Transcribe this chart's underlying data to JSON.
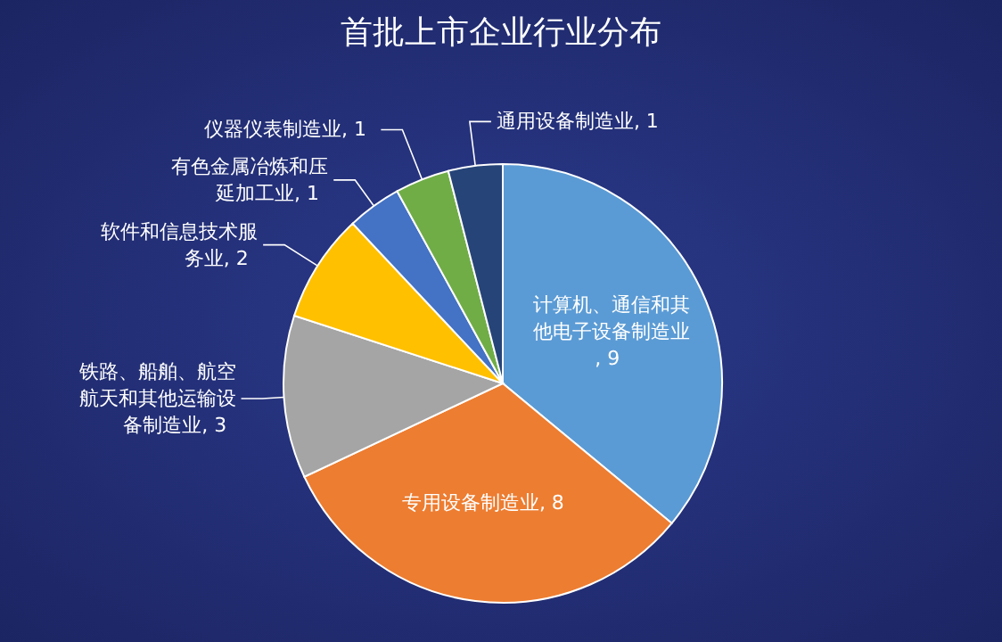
{
  "chart_data": {
    "type": "pie",
    "title": "首批上市企业行业分布",
    "categories": [
      "计算机、通信和其他电子设备制造业",
      "专用设备制造业",
      "铁路、船舶、航空航天和其他运输设备制造业",
      "软件和信息技术服务业",
      "有色金属冶炼和压延加工业",
      "仪器仪表制造业",
      "通用设备制造业"
    ],
    "values": [
      9,
      8,
      3,
      2,
      1,
      1,
      1
    ],
    "colors": [
      "#5b9bd5",
      "#ed7d31",
      "#a5a5a5",
      "#ffc000",
      "#4472c4",
      "#70ad47",
      "#264478"
    ],
    "value_labels": [
      ", 9",
      ", 8",
      ", 3",
      ", 2",
      ", 1",
      ", 1",
      ", 1"
    ]
  }
}
